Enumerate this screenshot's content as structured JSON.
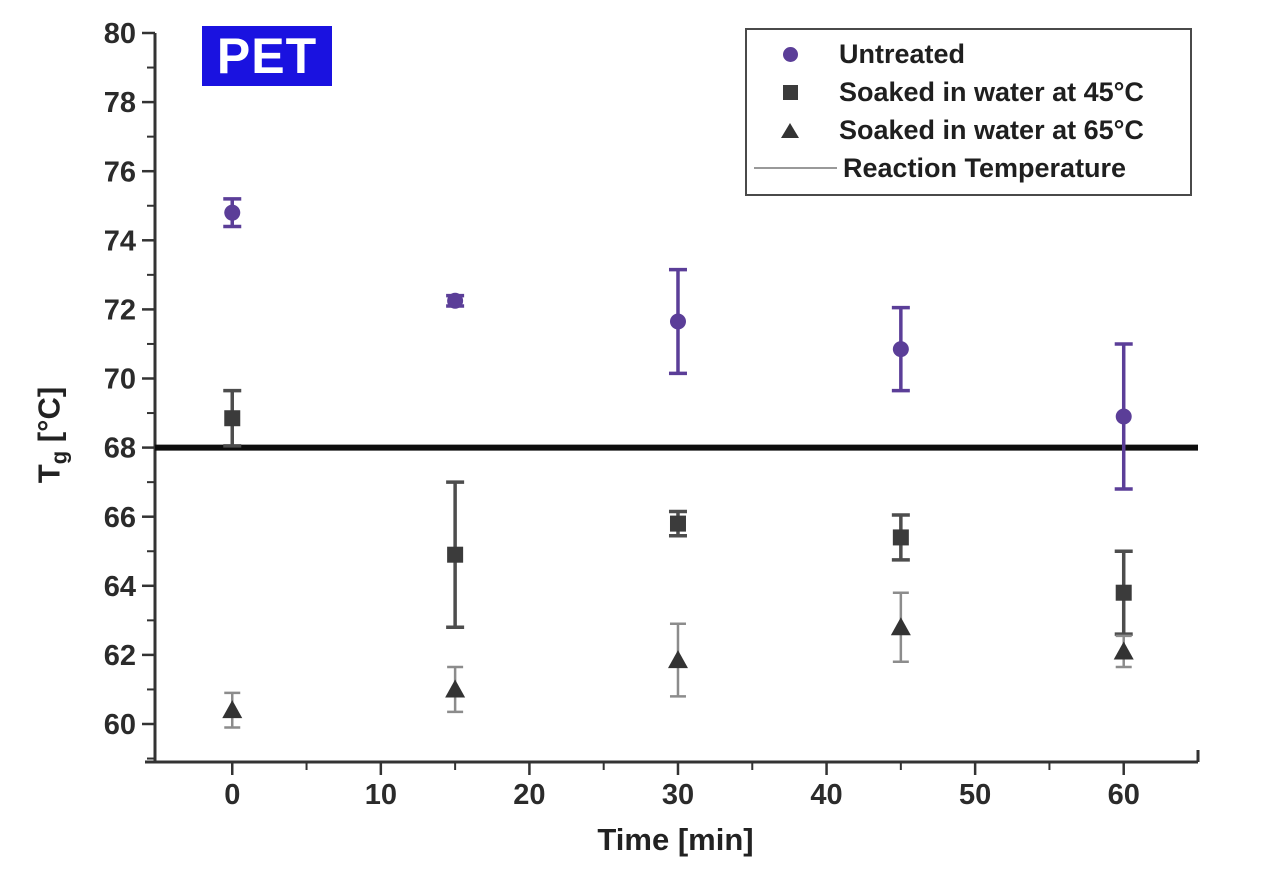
{
  "figure": {
    "pet_label": "PET",
    "pet_label_bg": "#1a12e0",
    "background": "#ffffff",
    "axis_color": "#333333"
  },
  "chart_data": {
    "type": "scatter",
    "title": "",
    "xlabel": "Time [min]",
    "ylabel": "Tg [°C]",
    "ylabel_parts": {
      "main": "T",
      "sub": "g",
      "unit": " [°C]"
    },
    "xlim": [
      -5.2,
      65
    ],
    "ylim": [
      58.9,
      80
    ],
    "grid": false,
    "x_ticks": [
      0,
      10,
      20,
      30,
      40,
      50,
      60
    ],
    "x_minor_ticks": [
      5,
      15,
      25,
      35,
      45,
      55
    ],
    "y_ticks": [
      60,
      62,
      64,
      66,
      68,
      70,
      72,
      74,
      76,
      78,
      80
    ],
    "y_minor_ticks": [
      59,
      61,
      63,
      65,
      67,
      69,
      71,
      73,
      75,
      77,
      79
    ],
    "x": [
      0,
      15,
      30,
      45,
      60
    ],
    "series": [
      {
        "name": "Untreated",
        "marker": "circle",
        "color": "#5b3e98",
        "bar_color": "#5b3e98",
        "values": [
          74.8,
          72.25,
          71.65,
          70.85,
          68.9
        ],
        "errors": [
          0.4,
          0.15,
          1.5,
          1.2,
          2.1
        ]
      },
      {
        "name": "Soaked in water at 45°C",
        "marker": "square",
        "color": "#3b3b3b",
        "bar_color": "#4d4d4d",
        "values": [
          68.85,
          64.9,
          65.8,
          65.4,
          63.8
        ],
        "errors": [
          0.8,
          2.1,
          0.35,
          0.65,
          1.2
        ]
      },
      {
        "name": "Soaked in water at 65°C",
        "marker": "triangle",
        "color": "#333333",
        "bar_color": "#8c8c8c",
        "values": [
          60.4,
          61.0,
          61.85,
          62.8,
          62.1
        ],
        "errors": [
          0.5,
          0.65,
          1.05,
          1.0,
          0.45
        ]
      }
    ],
    "reference_line": {
      "label": "Reaction Temperature",
      "value": 68,
      "color": "#0d0d0d"
    },
    "legend": {
      "position": "top-right",
      "items": [
        {
          "label": "Untreated",
          "marker": "circle"
        },
        {
          "label": "Soaked in water at 45°C",
          "marker": "square"
        },
        {
          "label": "Soaked in water at 65°C",
          "marker": "triangle"
        },
        {
          "label": "Reaction Temperature",
          "marker": "line"
        }
      ]
    }
  }
}
